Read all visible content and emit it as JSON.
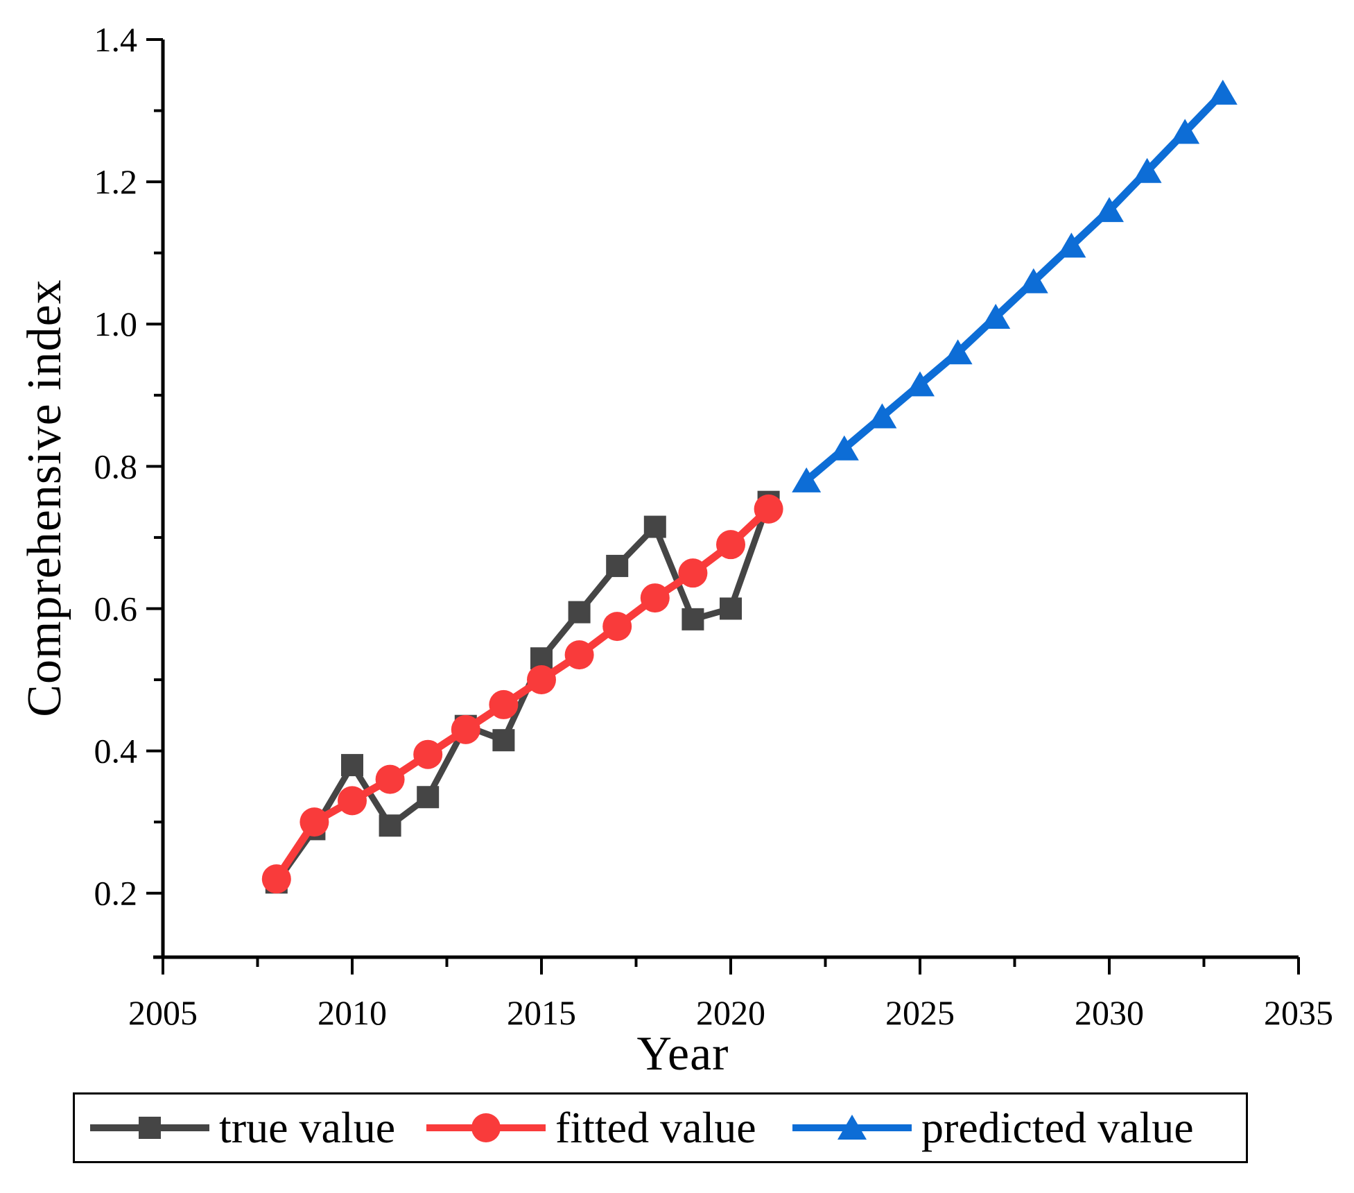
{
  "chart_data": {
    "type": "line",
    "title": "",
    "xlabel": "Year",
    "ylabel": "Comprehensive index",
    "xlim": [
      2005,
      2035
    ],
    "ylim": [
      0.11,
      1.4
    ],
    "x_ticks": [
      2005,
      2010,
      2015,
      2020,
      2025,
      2030,
      2035
    ],
    "x_minor_ticks": [
      2007.5,
      2012.5,
      2017.5,
      2022.5,
      2027.5,
      2032.5
    ],
    "y_ticks": [
      0.2,
      0.4,
      0.6,
      0.8,
      1.0,
      1.2,
      1.4
    ],
    "y_minor_ticks": [
      0.3,
      0.5,
      0.7,
      0.9,
      1.1,
      1.3
    ],
    "grid": false,
    "legend_position": "bottom",
    "axis_color": "#000000",
    "series": [
      {
        "name": "true value",
        "color": "#454545",
        "marker": "square",
        "x": [
          2008,
          2009,
          2010,
          2011,
          2012,
          2013,
          2014,
          2015,
          2016,
          2017,
          2018,
          2019,
          2020,
          2021
        ],
        "values": [
          0.215,
          0.29,
          0.38,
          0.295,
          0.335,
          0.435,
          0.415,
          0.53,
          0.595,
          0.66,
          0.715,
          0.585,
          0.6,
          0.75
        ]
      },
      {
        "name": "fitted value",
        "color": "#F93B3B",
        "marker": "circle",
        "x": [
          2008,
          2009,
          2010,
          2011,
          2012,
          2013,
          2014,
          2015,
          2016,
          2017,
          2018,
          2019,
          2020,
          2021
        ],
        "values": [
          0.22,
          0.3,
          0.33,
          0.36,
          0.395,
          0.43,
          0.465,
          0.5,
          0.535,
          0.575,
          0.615,
          0.65,
          0.69,
          0.74
        ]
      },
      {
        "name": "predicted value",
        "color": "#0D6DD6",
        "marker": "triangle",
        "x": [
          2022,
          2023,
          2024,
          2025,
          2026,
          2027,
          2028,
          2029,
          2030,
          2031,
          2032,
          2033
        ],
        "values": [
          0.78,
          0.825,
          0.87,
          0.915,
          0.96,
          1.01,
          1.06,
          1.11,
          1.16,
          1.215,
          1.27,
          1.325
        ]
      }
    ]
  }
}
